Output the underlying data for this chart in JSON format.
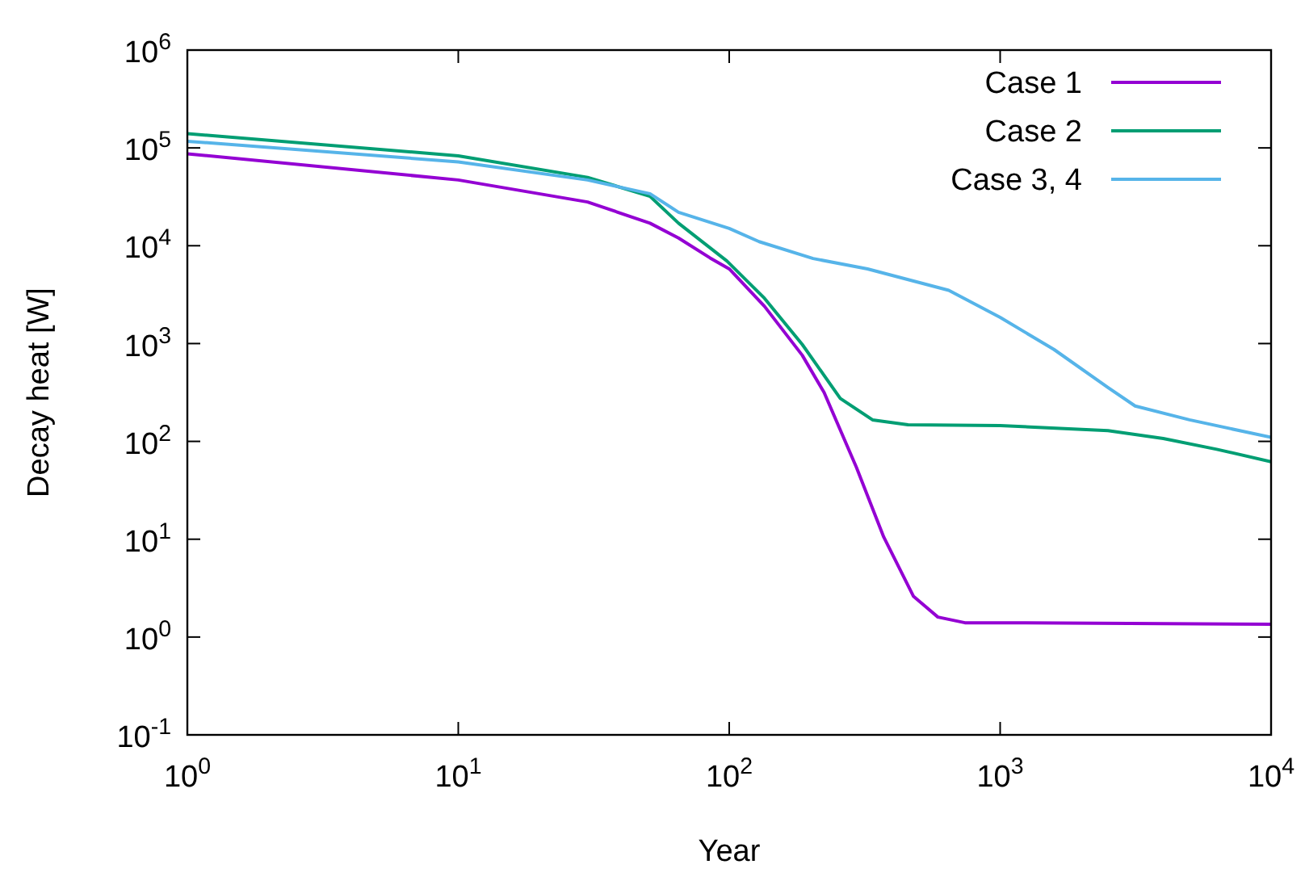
{
  "chart_data": {
    "type": "line",
    "xlabel": "Year",
    "ylabel": "Decay heat [W]",
    "log": "xy",
    "legend": "top right",
    "grid": false,
    "line_style": "solid",
    "xlim": [
      1,
      10000
    ],
    "xticks": [
      {
        "value": 1,
        "label": "10$^{0}$"
      },
      {
        "value": 10,
        "label": "10$^{1}$"
      },
      {
        "value": 100,
        "label": "10$^{2}$"
      },
      {
        "value": 1000,
        "label": "10$^{3}$"
      },
      {
        "value": 10000,
        "label": "10$^{4}$"
      }
    ],
    "ylim": [
      0.1,
      1000000
    ],
    "yticks": [
      {
        "value": 0.1,
        "label": "10$^{-1}$"
      },
      {
        "value": 1,
        "label": "10$^{0}$"
      },
      {
        "value": 10,
        "label": "10$^{1}$"
      },
      {
        "value": 100,
        "label": "10$^{2}$"
      },
      {
        "value": 1000,
        "label": "10$^{3}$"
      },
      {
        "value": 10000,
        "label": "10$^{4}$"
      },
      {
        "value": 100000,
        "label": "10$^{5}$"
      },
      {
        "value": 1000000,
        "label": "10$^{6}$"
      }
    ],
    "series": [
      {
        "name": "Case 1",
        "color": "#9400d3",
        "x": [
          1,
          10,
          30,
          51,
          65,
          85,
          100,
          135,
          186,
          224,
          295,
          372,
          479,
          589,
          741,
          1000,
          10000
        ],
        "values": [
          87000,
          47000,
          28000,
          17000,
          12000,
          7500,
          5800,
          2400,
          760,
          316,
          54,
          10.5,
          2.6,
          1.6,
          1.4,
          1.4,
          1.35
        ]
      },
      {
        "name": "Case 2",
        "color": "#009e73",
        "x": [
          1,
          10,
          30,
          51,
          65,
          98,
          135,
          186,
          257,
          338,
          457,
          1000,
          2500,
          4000,
          6300,
          10000
        ],
        "values": [
          140000,
          83000,
          50000,
          32000,
          17000,
          7000,
          2900,
          980,
          275,
          166,
          148,
          145,
          129,
          107,
          83,
          62
        ]
      },
      {
        "name": "Case 3, 4",
        "color": "#56b4e9",
        "x": [
          1,
          10,
          30,
          51,
          65,
          100,
          129,
          204,
          324,
          646,
          1000,
          1580,
          2500,
          3150,
          5000,
          10000
        ],
        "values": [
          117000,
          72000,
          47000,
          34000,
          22000,
          15000,
          11000,
          7400,
          5800,
          3500,
          1850,
          870,
          355,
          230,
          166,
          110
        ]
      }
    ]
  }
}
